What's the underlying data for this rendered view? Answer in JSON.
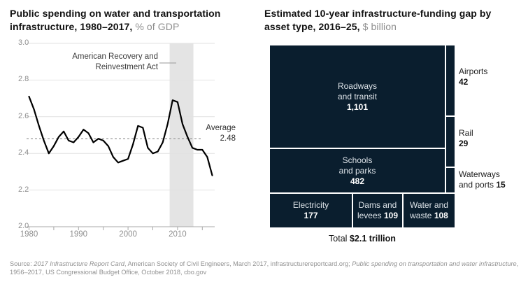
{
  "colors": {
    "navy": "#0a1e2e",
    "band": "#e4e4e4",
    "grid": "#e2e2e2",
    "axis": "#a8a8a8",
    "dash": "#8f8f8f",
    "line": "#000000",
    "muted_text": "#8f8f8f"
  },
  "left_panel": {
    "title_bold": "Public spending on water and transportation infrastructure, 1980–2017,",
    "title_unit": " % of GDP",
    "annotation_line1": "American Recovery and",
    "annotation_line2": "Reinvestment Act",
    "average_label": "Average",
    "average_value": "2.48"
  },
  "right_panel": {
    "title_bold": "Estimated 10-year infrastructure-funding gap by asset type, 2016–25,",
    "title_unit": " $ billion",
    "total_label": "Total ",
    "total_value": "$2.1 trillion"
  },
  "footer": {
    "s1": "Source: ",
    "s2": "2017 Infrastructure Report Card",
    "s3": ", American Society of Civil Engineers, March 2017, infrastructurereportcard.org; ",
    "s4": "Public spending on transportation and water infrastructure",
    "s5": ", 1956–2017, US Congressional Budget Office, October 2018, cbo.gov"
  },
  "chart_data": [
    {
      "type": "line",
      "title": "Public spending on water and transportation infrastructure, 1980–2017, % of GDP",
      "ylabel": "% of GDP",
      "ylim": [
        2.0,
        3.0
      ],
      "yticks": [
        3.0,
        2.8,
        2.6,
        2.4,
        2.2,
        2.0
      ],
      "xticks": [
        1980,
        1990,
        2000,
        2010
      ],
      "minor_xtick_step": 5,
      "grid": true,
      "average": 2.48,
      "average_label": "Average 2.48",
      "highlight_band_x": [
        2008.4,
        2013.2
      ],
      "highlight_band_label": "American Recovery and Reinvestment Act",
      "x": [
        1980,
        1981,
        1982,
        1983,
        1984,
        1985,
        1986,
        1987,
        1988,
        1989,
        1990,
        1991,
        1992,
        1993,
        1994,
        1995,
        1996,
        1997,
        1998,
        1999,
        2000,
        2001,
        2002,
        2003,
        2004,
        2005,
        2006,
        2007,
        2008,
        2009,
        2010,
        2011,
        2012,
        2013,
        2014,
        2015,
        2016,
        2017
      ],
      "values": [
        2.71,
        2.64,
        2.55,
        2.47,
        2.4,
        2.44,
        2.49,
        2.52,
        2.47,
        2.46,
        2.49,
        2.53,
        2.51,
        2.46,
        2.48,
        2.47,
        2.44,
        2.38,
        2.35,
        2.36,
        2.37,
        2.45,
        2.55,
        2.54,
        2.43,
        2.4,
        2.41,
        2.46,
        2.56,
        2.69,
        2.68,
        2.56,
        2.49,
        2.43,
        2.42,
        2.42,
        2.38,
        2.28
      ]
    },
    {
      "type": "treemap",
      "title": "Estimated 10-year infrastructure-funding gap by asset type, 2016–25, $ billion",
      "total_label": "Total $2.1 trillion",
      "blocks": [
        {
          "id": "roadways",
          "label_lines": [
            "Roadways",
            "and transit"
          ],
          "value": 1101,
          "value_display": "1,101",
          "inline_value": false,
          "label_placement": "inside"
        },
        {
          "id": "schools",
          "label_lines": [
            "Schools",
            "and parks"
          ],
          "value": 482,
          "value_display": "482",
          "inline_value": false,
          "label_placement": "inside"
        },
        {
          "id": "electricity",
          "label_lines": [
            "Electricity"
          ],
          "value": 177,
          "value_display": "177",
          "inline_value": false,
          "label_placement": "inside"
        },
        {
          "id": "dams",
          "label_lines": [
            "Dams and",
            "levees"
          ],
          "value": 109,
          "value_display": "109",
          "inline_value": true,
          "label_placement": "inside"
        },
        {
          "id": "water",
          "label_lines": [
            "Water and",
            "waste"
          ],
          "value": 108,
          "value_display": "108",
          "inline_value": true,
          "label_placement": "inside"
        },
        {
          "id": "airports",
          "label_lines": [
            "Airports"
          ],
          "value": 42,
          "value_display": "42",
          "inline_value": false,
          "label_placement": "outside"
        },
        {
          "id": "rail",
          "label_lines": [
            "Rail"
          ],
          "value": 29,
          "value_display": "29",
          "inline_value": false,
          "label_placement": "outside"
        },
        {
          "id": "waterways",
          "label_lines": [
            "Waterways",
            "and ports"
          ],
          "value": 15,
          "value_display": "15",
          "inline_value": true,
          "label_placement": "outside"
        }
      ]
    }
  ]
}
